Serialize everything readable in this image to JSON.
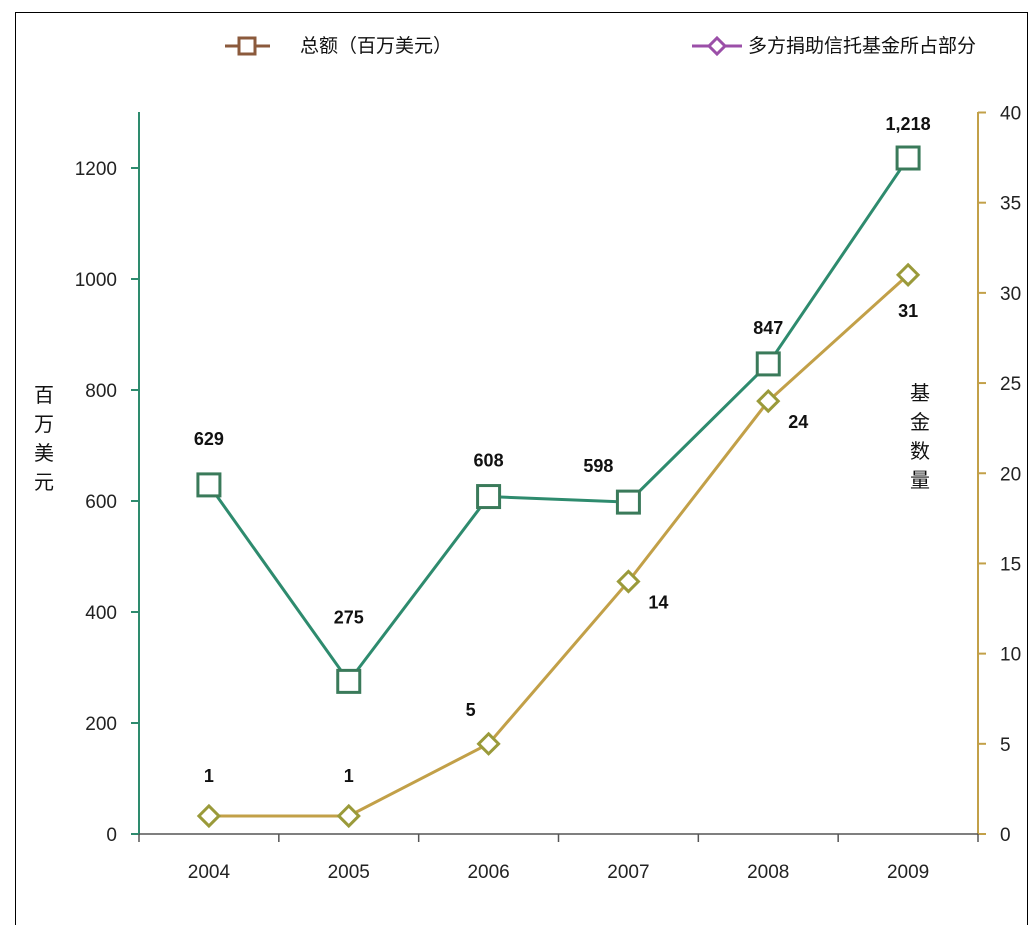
{
  "chart_data": {
    "type": "line",
    "categories": [
      "2004",
      "2005",
      "2006",
      "2007",
      "2008",
      "2009"
    ],
    "series": [
      {
        "name": "总额（百万美元）",
        "axis": "left",
        "values": [
          629,
          275,
          608,
          598,
          847,
          1218
        ],
        "labels": [
          "629",
          "275",
          "608",
          "598",
          "847",
          "1,218"
        ],
        "marker": "square",
        "line_color": "#2e8b6e",
        "marker_color": "#3a7a5a",
        "legend_color": "#8b5a3c"
      },
      {
        "name": "多方捐助信托基金所占部分",
        "axis": "right",
        "values": [
          1,
          1,
          5,
          14,
          24,
          31
        ],
        "labels": [
          "1",
          "1",
          "5",
          "14",
          "24",
          "31"
        ],
        "marker": "diamond",
        "line_color": "#c2a048",
        "marker_color": "#9a9a3a",
        "legend_color": "#9b4fa8"
      }
    ],
    "y_left": {
      "label": [
        "百",
        "万",
        "美",
        "元"
      ],
      "ylim": [
        0,
        1300
      ],
      "ticks": [
        "0",
        "200",
        "400",
        "600",
        "800",
        "1000",
        "1200"
      ]
    },
    "y_right": {
      "label": [
        "基",
        "金",
        "数",
        "量"
      ],
      "ylim": [
        0,
        40
      ],
      "ticks": [
        "0",
        "5",
        "10",
        "15",
        "20",
        "25",
        "30",
        "35",
        "40"
      ]
    },
    "grid": false,
    "legend": "top"
  }
}
